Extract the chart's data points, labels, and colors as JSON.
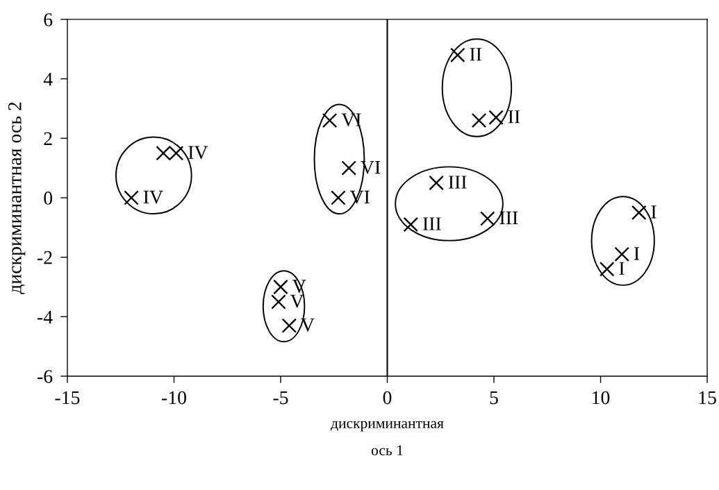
{
  "chart_data": {
    "type": "scatter",
    "xlabel": "дискриминантная\nось 1",
    "ylabel": "дискриминантная ось 2",
    "xlim": [
      -15,
      15
    ],
    "ylim": [
      -6,
      6
    ],
    "xticks": [
      -15,
      -10,
      -5,
      0,
      5,
      10,
      15
    ],
    "yticks": [
      -6,
      -4,
      -2,
      0,
      2,
      4,
      6
    ],
    "legend": false,
    "marker": "cross",
    "ref_lines": [
      {
        "axis": "x",
        "value": 0,
        "color": "#000000"
      }
    ],
    "series": [
      {
        "color": "#000000",
        "x": [
          11.8,
          11.0,
          10.3
        ],
        "values": [
          -0.5,
          -1.9,
          -2.4
        ],
        "value_labels": [
          "I",
          "I",
          "I"
        ]
      },
      {
        "color": "#000000",
        "x": [
          3.3,
          4.3,
          5.1
        ],
        "values": [
          4.8,
          2.6,
          2.7
        ],
        "value_labels": [
          "II",
          null,
          "II"
        ]
      },
      {
        "color": "#000000",
        "x": [
          2.3,
          1.1,
          4.7
        ],
        "values": [
          0.5,
          -0.9,
          -0.7
        ],
        "value_labels": [
          "III",
          "III",
          "III"
        ]
      },
      {
        "color": "#000000",
        "x": [
          -12.0,
          -10.5,
          -9.9
        ],
        "values": [
          0.0,
          1.5,
          1.5
        ],
        "value_labels": [
          "IV",
          null,
          "IV"
        ]
      },
      {
        "color": "#000000",
        "x": [
          -5.0,
          -5.1,
          -4.6
        ],
        "values": [
          -3.0,
          -3.5,
          -4.3
        ],
        "value_labels": [
          "V",
          "V",
          "V"
        ]
      },
      {
        "color": "#000000",
        "x": [
          -2.7,
          -1.8,
          -2.3
        ],
        "values": [
          2.6,
          1.0,
          0.0
        ],
        "value_labels": [
          "VI",
          "VI",
          "VI"
        ]
      }
    ]
  }
}
